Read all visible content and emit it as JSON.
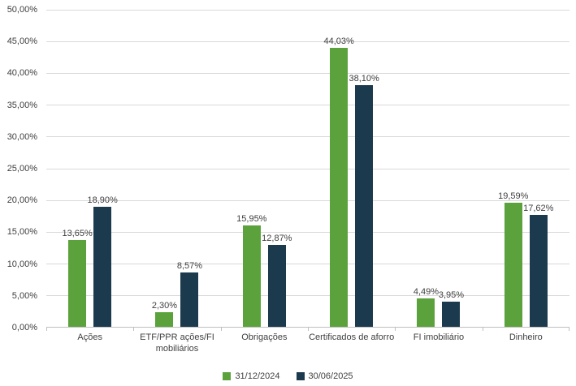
{
  "chart_data": {
    "type": "bar",
    "title": "",
    "xlabel": "",
    "ylabel": "",
    "grid": true,
    "legend_position": "bottom",
    "ylim": [
      0,
      50
    ],
    "categories": [
      "Ações",
      "ETF/PPR ações/FI\nmobiliários",
      "Obrigações",
      "Certificados de aforro",
      "FI imobiliário",
      "Dinheiro"
    ],
    "series": [
      {
        "name": "31/12/2024",
        "color": "#5ca23c",
        "values": [
          13.65,
          2.3,
          15.95,
          44.03,
          4.49,
          19.59
        ],
        "labels": [
          "13,65%",
          "2,30%",
          "15,95%",
          "44,03%",
          "4,49%",
          "19,59%"
        ]
      },
      {
        "name": "30/06/2025",
        "color": "#1c3a4e",
        "values": [
          18.9,
          8.57,
          12.87,
          38.1,
          3.95,
          17.62
        ],
        "labels": [
          "18,90%",
          "8,57%",
          "12,87%",
          "38,10%",
          "3,95%",
          "17,62%"
        ]
      }
    ],
    "y_ticks": [
      {
        "value": 0,
        "label": "0,00%"
      },
      {
        "value": 5,
        "label": "5,00%"
      },
      {
        "value": 10,
        "label": "10,00%"
      },
      {
        "value": 15,
        "label": "15,00%"
      },
      {
        "value": 20,
        "label": "20,00%"
      },
      {
        "value": 25,
        "label": "25,00%"
      },
      {
        "value": 30,
        "label": "30,00%"
      },
      {
        "value": 35,
        "label": "35,00%"
      },
      {
        "value": 40,
        "label": "40,00%"
      },
      {
        "value": 45,
        "label": "45,00%"
      },
      {
        "value": 50,
        "label": "50,00%"
      }
    ]
  }
}
